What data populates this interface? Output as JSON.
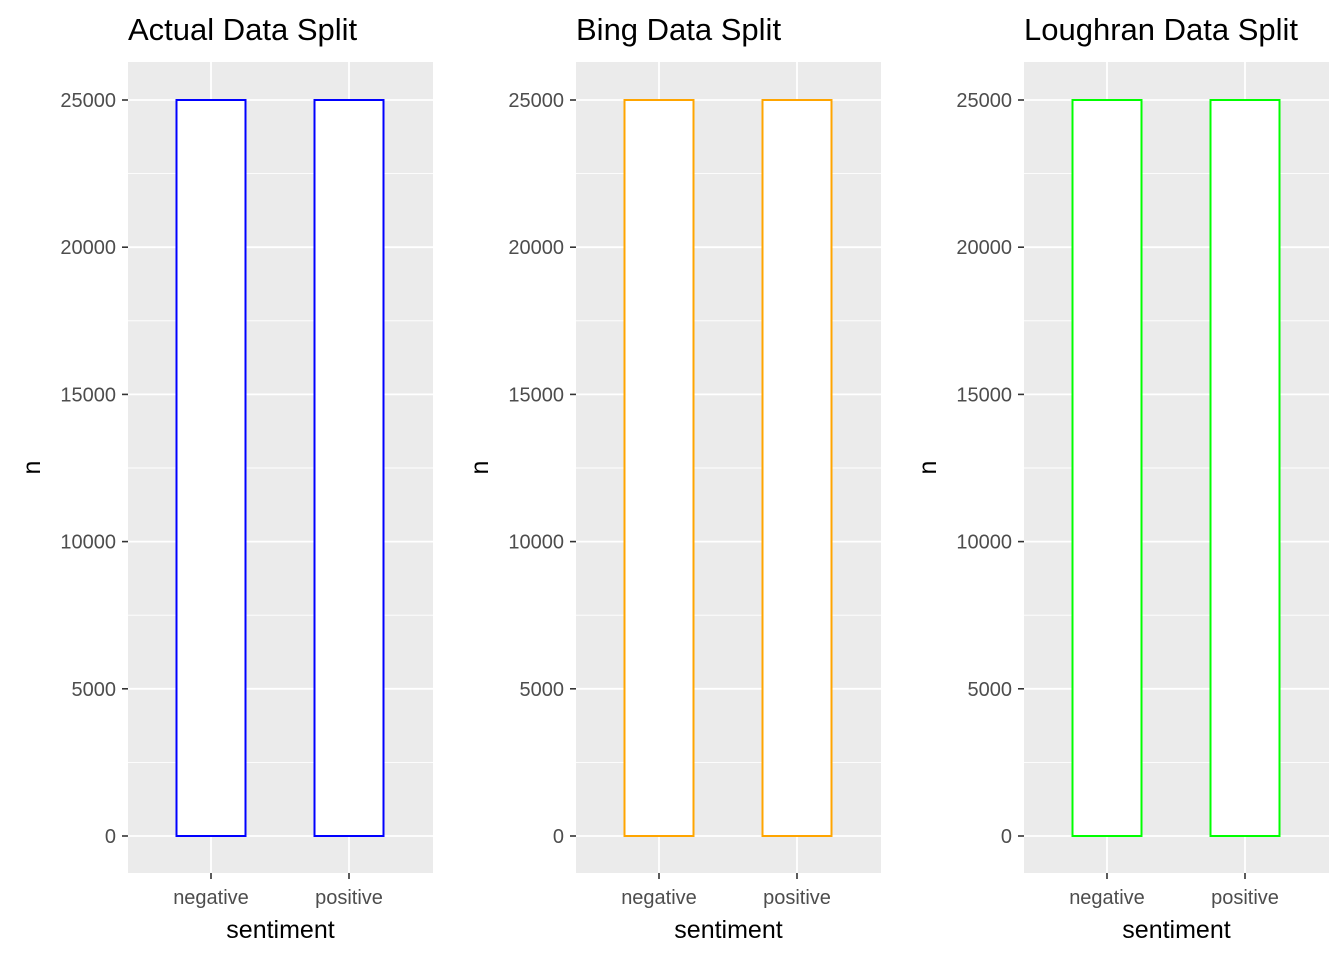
{
  "chart_data": [
    {
      "type": "bar",
      "title": "Actual Data Split",
      "xlabel": "sentiment",
      "ylabel": "n",
      "categories": [
        "negative",
        "positive"
      ],
      "values": [
        25000,
        25000
      ],
      "ylim": [
        0,
        25000
      ],
      "yticks": [
        "0",
        "5000",
        "10000",
        "15000",
        "20000",
        "25000"
      ],
      "bar_outline_color": "#0000ff",
      "bar_fill_color": "#ffffff",
      "panel_background": "#ebebeb",
      "grid": true,
      "legend": "none"
    },
    {
      "type": "bar",
      "title": "Bing Data Split",
      "xlabel": "sentiment",
      "ylabel": "n",
      "categories": [
        "negative",
        "positive"
      ],
      "values": [
        25000,
        25000
      ],
      "ylim": [
        0,
        25000
      ],
      "yticks": [
        "0",
        "5000",
        "10000",
        "15000",
        "20000",
        "25000"
      ],
      "bar_outline_color": "#ffa500",
      "bar_fill_color": "#ffffff",
      "panel_background": "#ebebeb",
      "grid": true,
      "legend": "none"
    },
    {
      "type": "bar",
      "title": "Loughran Data Split",
      "xlabel": "sentiment",
      "ylabel": "n",
      "categories": [
        "negative",
        "positive"
      ],
      "values": [
        25000,
        25000
      ],
      "ylim": [
        0,
        25000
      ],
      "yticks": [
        "0",
        "5000",
        "10000",
        "15000",
        "20000",
        "25000"
      ],
      "bar_outline_color": "#00ff00",
      "bar_fill_color": "#ffffff",
      "panel_background": "#ebebeb",
      "grid": true,
      "legend": "none"
    }
  ]
}
